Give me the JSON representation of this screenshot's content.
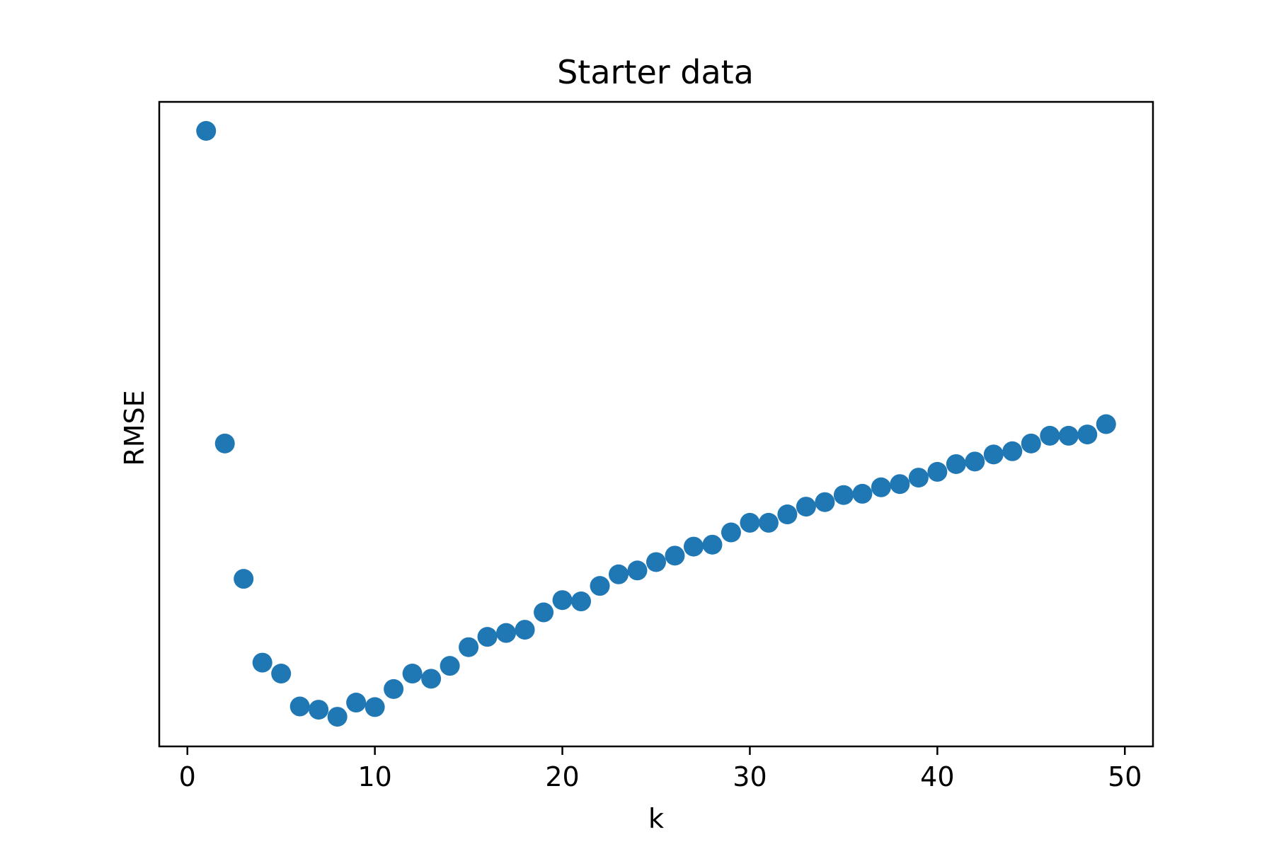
{
  "chart_data": {
    "type": "scatter",
    "title": "Starter data",
    "xlabel": "k",
    "ylabel": "RMSE",
    "xlim": [
      -1.5,
      51.5
    ],
    "ylim": [
      0,
      1
    ],
    "x_ticks": [
      0,
      10,
      20,
      30,
      40,
      50
    ],
    "y_ticks": [],
    "grid": false,
    "legend": "none",
    "marker_color": "#1f77b4",
    "series": [
      {
        "x": [
          1,
          2,
          3,
          4,
          5,
          6,
          7,
          8,
          9,
          10,
          11,
          12,
          13,
          14,
          15,
          16,
          17,
          18,
          19,
          20,
          21,
          22,
          23,
          24,
          25,
          26,
          27,
          28,
          29,
          30,
          31,
          32,
          33,
          34,
          35,
          36,
          37,
          38,
          39,
          40,
          41,
          42,
          43,
          44,
          45,
          46,
          47,
          48,
          49
        ],
        "y": [
          0.955,
          0.47,
          0.26,
          0.13,
          0.113,
          0.062,
          0.057,
          0.046,
          0.068,
          0.061,
          0.089,
          0.113,
          0.105,
          0.125,
          0.154,
          0.17,
          0.176,
          0.181,
          0.208,
          0.227,
          0.225,
          0.249,
          0.267,
          0.273,
          0.286,
          0.296,
          0.31,
          0.313,
          0.332,
          0.347,
          0.347,
          0.36,
          0.372,
          0.379,
          0.39,
          0.392,
          0.402,
          0.407,
          0.417,
          0.426,
          0.438,
          0.442,
          0.453,
          0.458,
          0.47,
          0.482,
          0.482,
          0.484,
          0.5
        ]
      }
    ]
  }
}
